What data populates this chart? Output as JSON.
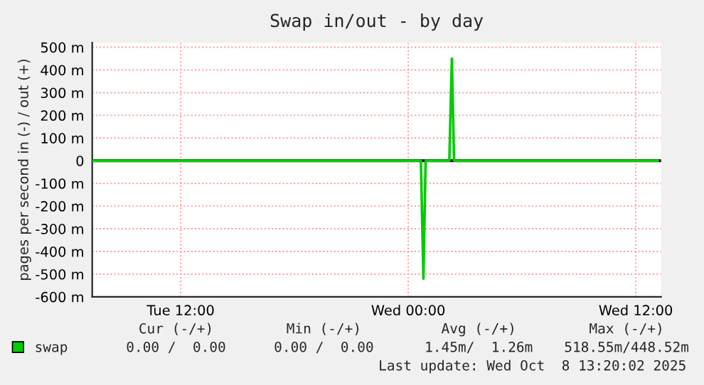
{
  "chart_data": {
    "type": "line",
    "title": "Swap in/out - by day",
    "ylabel": "pages per second in (-) / out (+)",
    "series": [
      {
        "name": "swap",
        "color": "#00cc00",
        "x": [
          "2025-10-07T07:20",
          "2025-10-08T00:40",
          "2025-10-08T00:48",
          "2025-10-08T00:55",
          "2025-10-08T02:10",
          "2025-10-08T02:18",
          "2025-10-08T02:25",
          "2025-10-08T13:10"
        ],
        "values": [
          0,
          0,
          -520,
          0,
          0,
          450,
          0,
          0
        ]
      }
    ],
    "xlim": [
      "2025-10-07T07:20",
      "2025-10-08T13:20"
    ],
    "xticks": [
      {
        "value": "2025-10-07T12:00",
        "label": "Tue 12:00"
      },
      {
        "value": "2025-10-08T00:00",
        "label": "Wed 00:00"
      },
      {
        "value": "2025-10-08T12:00",
        "label": "Wed 12:00"
      }
    ],
    "ylim": [
      -600,
      520
    ],
    "yticks": [
      {
        "value": -600,
        "label": "-600 m"
      },
      {
        "value": -500,
        "label": "-500 m"
      },
      {
        "value": -400,
        "label": "-400 m"
      },
      {
        "value": -300,
        "label": "-300 m"
      },
      {
        "value": -200,
        "label": "-200 m"
      },
      {
        "value": -100,
        "label": "-100 m"
      },
      0,
      {
        "value": 100,
        "label": "100 m"
      },
      {
        "value": 200,
        "label": "200 m"
      },
      {
        "value": 300,
        "label": "300 m"
      },
      {
        "value": 400,
        "label": "400 m"
      },
      {
        "value": 500,
        "label": "500 m"
      }
    ],
    "ref_lines": [
      {
        "axis": "y",
        "value": 0,
        "color": "#000000"
      }
    ],
    "grid": true,
    "legend": "bottom left",
    "annotations": [
      "Cur (-/+)",
      "Min (-/+)",
      "Avg (-/+)",
      "Max (-/+)",
      "0.00 /  0.00",
      "0.00 /  0.00",
      "1.45m/  1.26m",
      "518.55m/448.52m",
      "Last update: Wed Oct  8 13:20:02 2025"
    ]
  }
}
